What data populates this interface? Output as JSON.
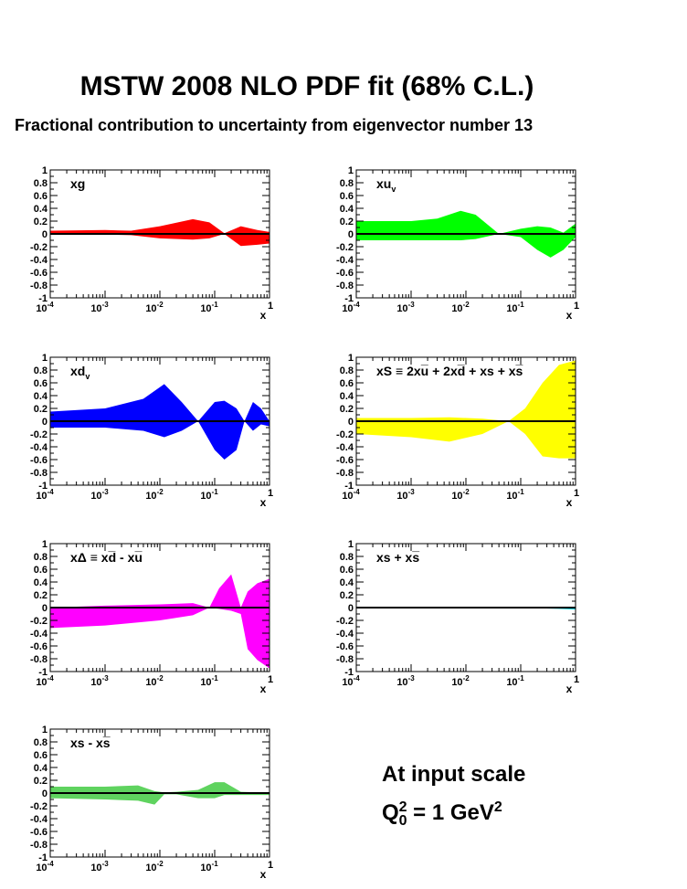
{
  "title": "MSTW 2008 NLO PDF fit (68% C.L.)",
  "subtitle": "Fractional contribution to uncertainty from eigenvector number 13",
  "note": {
    "line1": "At input scale",
    "q": "Q",
    "sub": "0",
    "sup": "2",
    "rest": " = 1 GeV",
    "sup2": "2"
  },
  "chart_data": [
    {
      "type": "area",
      "label": "xg",
      "label_sub": "",
      "color": "#ff0000",
      "xscale": "log",
      "xlim": [
        0.0001,
        1
      ],
      "ylim": [
        -1,
        1
      ],
      "xlabel": "x",
      "x": [
        0.0001,
        0.001,
        0.003,
        0.01,
        0.04,
        0.08,
        0.15,
        0.3,
        0.6,
        1
      ],
      "upper": [
        0.05,
        0.06,
        0.05,
        0.12,
        0.23,
        0.18,
        0.01,
        0.12,
        0.06,
        0.03
      ],
      "lower": [
        0.0,
        -0.01,
        -0.02,
        -0.07,
        -0.09,
        -0.07,
        0.0,
        -0.19,
        -0.17,
        -0.15
      ]
    },
    {
      "type": "area",
      "label": "xu",
      "label_sub": "v",
      "color": "#00ff00",
      "xscale": "log",
      "xlim": [
        0.0001,
        1
      ],
      "ylim": [
        -1,
        1
      ],
      "xlabel": "x",
      "x": [
        0.0001,
        0.001,
        0.003,
        0.008,
        0.015,
        0.04,
        0.1,
        0.2,
        0.35,
        0.6,
        1
      ],
      "upper": [
        0.2,
        0.2,
        0.24,
        0.36,
        0.3,
        0.0,
        0.08,
        0.12,
        0.1,
        0.02,
        0.16
      ],
      "lower": [
        -0.1,
        -0.1,
        -0.1,
        -0.1,
        -0.08,
        0.0,
        -0.05,
        -0.25,
        -0.37,
        -0.25,
        -0.05
      ]
    },
    {
      "type": "area",
      "label": "xd",
      "label_sub": "v",
      "color": "#0000ff",
      "xscale": "log",
      "xlim": [
        0.0001,
        1
      ],
      "ylim": [
        -1,
        1
      ],
      "xlabel": "x",
      "x": [
        0.0001,
        0.001,
        0.005,
        0.012,
        0.025,
        0.05,
        0.1,
        0.15,
        0.25,
        0.35,
        0.5,
        0.7,
        1
      ],
      "upper": [
        0.15,
        0.2,
        0.35,
        0.58,
        0.3,
        0.0,
        0.3,
        0.32,
        0.2,
        0.0,
        0.3,
        0.2,
        0.0
      ],
      "lower": [
        -0.1,
        -0.1,
        -0.15,
        -0.25,
        -0.15,
        0.0,
        -0.45,
        -0.6,
        -0.45,
        0.0,
        -0.15,
        -0.05,
        -0.08
      ]
    },
    {
      "type": "area",
      "label": "xS ≡ 2xu̅ + 2xd̅ + xs + xs̅",
      "label_sub": "",
      "color": "#ffff00",
      "xscale": "log",
      "xlim": [
        0.0001,
        1
      ],
      "ylim": [
        -1,
        1
      ],
      "xlabel": "x",
      "x": [
        0.0001,
        0.001,
        0.005,
        0.02,
        0.06,
        0.12,
        0.25,
        0.5,
        1
      ],
      "upper": [
        0.05,
        0.05,
        0.06,
        0.04,
        0.0,
        0.2,
        0.6,
        0.88,
        0.95
      ],
      "lower": [
        -0.2,
        -0.25,
        -0.32,
        -0.2,
        0.0,
        -0.2,
        -0.55,
        -0.58,
        -0.58
      ]
    },
    {
      "type": "area",
      "label": "xΔ ≡ xd̅ - xu̅",
      "label_sub": "",
      "color": "#ff00ff",
      "xscale": "log",
      "xlim": [
        0.0001,
        1
      ],
      "ylim": [
        -1,
        1
      ],
      "xlabel": "x",
      "x": [
        0.0001,
        0.001,
        0.01,
        0.04,
        0.08,
        0.12,
        0.2,
        0.3,
        0.4,
        0.6,
        1
      ],
      "upper": [
        0.0,
        0.03,
        0.05,
        0.07,
        0.0,
        0.3,
        0.52,
        0.0,
        0.25,
        0.38,
        0.45
      ],
      "lower": [
        -0.32,
        -0.28,
        -0.2,
        -0.12,
        0.0,
        -0.02,
        -0.05,
        -0.1,
        -0.65,
        -0.82,
        -0.95
      ]
    },
    {
      "type": "area",
      "label": "xs + xs̅",
      "label_sub": "",
      "color": "#00d8e8",
      "xscale": "log",
      "xlim": [
        0.0001,
        1
      ],
      "ylim": [
        -1,
        1
      ],
      "xlabel": "x",
      "x": [
        0.0001,
        0.01,
        0.1,
        0.5,
        1
      ],
      "upper": [
        0.01,
        0.01,
        0.005,
        0.0,
        0.0
      ],
      "lower": [
        -0.01,
        -0.01,
        -0.005,
        -0.02,
        -0.03
      ]
    },
    {
      "type": "area",
      "label": "xs - xs̅",
      "label_sub": "",
      "color": "#5fd35f",
      "xscale": "log",
      "xlim": [
        0.0001,
        1
      ],
      "ylim": [
        -1,
        1
      ],
      "xlabel": "x",
      "x": [
        0.0001,
        0.001,
        0.004,
        0.008,
        0.012,
        0.02,
        0.05,
        0.1,
        0.15,
        0.3,
        0.6,
        1
      ],
      "upper": [
        0.1,
        0.1,
        0.12,
        0.03,
        0.01,
        0.02,
        0.05,
        0.17,
        0.17,
        0.02,
        0.01,
        0.0
      ],
      "lower": [
        -0.08,
        -0.1,
        -0.12,
        -0.18,
        -0.02,
        -0.02,
        -0.08,
        -0.08,
        -0.03,
        -0.03,
        -0.03,
        -0.03
      ]
    }
  ]
}
